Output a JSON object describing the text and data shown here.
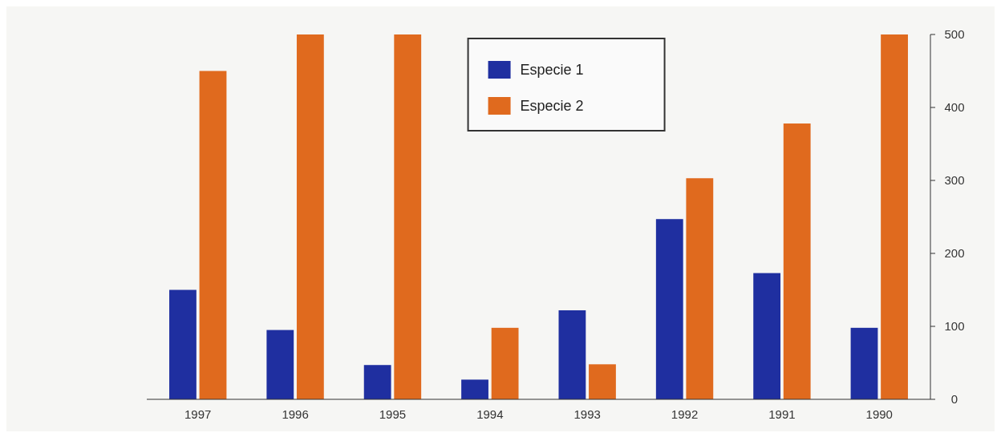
{
  "chart_data": {
    "type": "bar",
    "categories": [
      "1997",
      "1996",
      "1995",
      "1994",
      "1993",
      "1992",
      "1991",
      "1990"
    ],
    "series": [
      {
        "name": "Especie 1",
        "color": "#1f2fa0",
        "values": [
          150,
          95,
          47,
          27,
          122,
          247,
          173,
          98
        ]
      },
      {
        "name": "Especie 2",
        "color": "#e06a1e",
        "values": [
          450,
          500,
          500,
          98,
          48,
          303,
          378,
          500
        ]
      }
    ],
    "ylim": [
      0,
      500
    ],
    "yticks": [
      0,
      100,
      200,
      300,
      400,
      500
    ],
    "grid": false,
    "legend": "top"
  }
}
